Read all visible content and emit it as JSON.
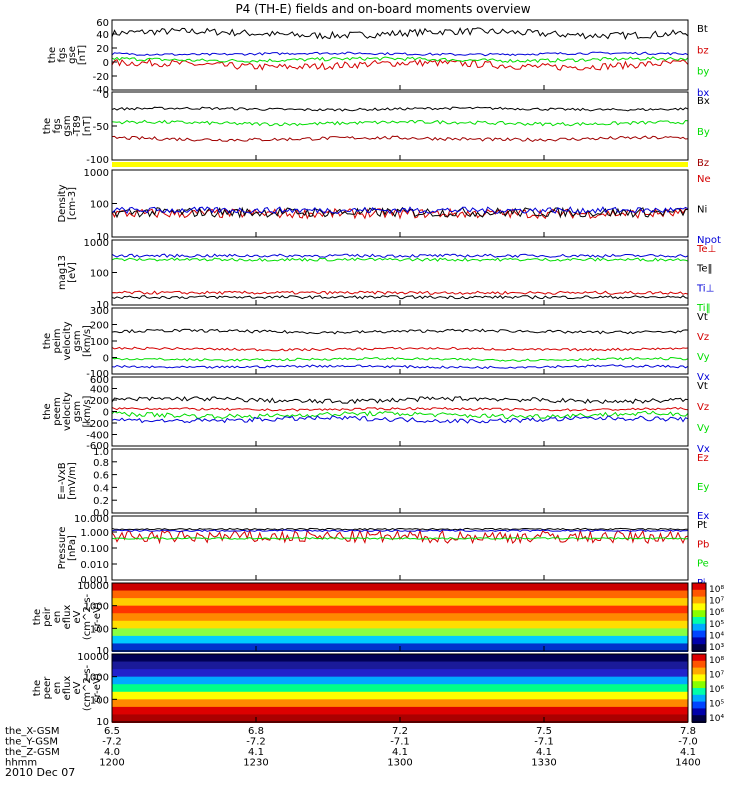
{
  "title": "P4 (TH-E) fields and on-board moments overview",
  "date_label": "2010 Dec 07",
  "colors": {
    "black": "#000000",
    "red": "#d40000",
    "green": "#00dd00",
    "blue": "#0000d8",
    "darkred": "#a00000",
    "yellow": "#ffff00"
  },
  "chart_data": [
    {
      "type": "line",
      "ylabel": [
        "the",
        "fgs",
        "gse",
        "[nT]"
      ],
      "yticks": [
        "60",
        "40",
        "20",
        "0",
        "-20",
        "-40"
      ],
      "ylim": [
        -55,
        65
      ],
      "series": [
        {
          "name": "Bt",
          "color": "#000000",
          "level": 42,
          "noise": 6
        },
        {
          "name": "bz",
          "color": "#d40000",
          "level": -12,
          "noise": 6
        },
        {
          "name": "by",
          "color": "#00dd00",
          "level": -3,
          "noise": 3
        },
        {
          "name": "bx",
          "color": "#0000d8",
          "level": 7,
          "noise": 2
        }
      ]
    },
    {
      "type": "line",
      "ylabel": [
        "the",
        "fgs",
        "gsm",
        "-T89",
        "[nT]"
      ],
      "yticks": [
        "0",
        "-50",
        "-100"
      ],
      "ylim": [
        -115,
        45
      ],
      "series": [
        {
          "name": "Bx",
          "color": "#000000",
          "level": 5,
          "noise": 3
        },
        {
          "name": "By",
          "color": "#00dd00",
          "level": -28,
          "noise": 4
        },
        {
          "name": "Bz",
          "color": "#a00000",
          "level": -65,
          "noise": 4
        }
      ]
    },
    {
      "type": "line",
      "ylabel": [
        "Density",
        "[cm-3]"
      ],
      "yticks": [
        "1000",
        "100",
        "10"
      ],
      "log": true,
      "ylim": [
        10,
        1300
      ],
      "series": [
        {
          "name": "Ne",
          "color": "#d40000",
          "level": 55,
          "noise": 0.15
        },
        {
          "name": "Ni",
          "color": "#000000",
          "level": 60,
          "noise": 0.15
        },
        {
          "name": "Npot",
          "color": "#0000d8",
          "level": 70,
          "noise": 0.1
        }
      ]
    },
    {
      "type": "line",
      "ylabel": [
        "mag13",
        "[eV]"
      ],
      "yticks": [
        "1000",
        "100",
        "10"
      ],
      "log": true,
      "ylim": [
        10,
        1300
      ],
      "series": [
        {
          "name": "Te⊥",
          "color": "#d40000",
          "level": 25,
          "noise": 0.05
        },
        {
          "name": "Te‖",
          "color": "#000000",
          "level": 18,
          "noise": 0.05
        },
        {
          "name": "Ti⊥",
          "color": "#0000d8",
          "level": 400,
          "noise": 0.05
        },
        {
          "name": "Ti‖",
          "color": "#00dd00",
          "level": 300,
          "noise": 0.05
        }
      ]
    },
    {
      "type": "line",
      "ylabel": [
        "the",
        "peim",
        "velocity",
        "gsm",
        "[km/s]"
      ],
      "yticks": [
        "300",
        "200",
        "100",
        "0",
        "-100"
      ],
      "ylim": [
        -140,
        310
      ],
      "series": [
        {
          "name": "Vt",
          "color": "#000000",
          "level": 150,
          "noise": 10
        },
        {
          "name": "Vz",
          "color": "#d40000",
          "level": 30,
          "noise": 8
        },
        {
          "name": "Vy",
          "color": "#00dd00",
          "level": -40,
          "noise": 8
        },
        {
          "name": "Vx",
          "color": "#0000d8",
          "level": -90,
          "noise": 8
        }
      ]
    },
    {
      "type": "line",
      "ylabel": [
        "the",
        "peem",
        "velocity",
        "gsm",
        "[km/s]"
      ],
      "yticks": [
        "600",
        "400",
        "200",
        "0",
        "-200",
        "-400",
        "-600"
      ],
      "ylim": [
        -600,
        600
      ],
      "series": [
        {
          "name": "Vt",
          "color": "#000000",
          "level": 200,
          "noise": 40
        },
        {
          "name": "Vz",
          "color": "#d40000",
          "level": 40,
          "noise": 20
        },
        {
          "name": "Vy",
          "color": "#00dd00",
          "level": -60,
          "noise": 40
        },
        {
          "name": "Vx",
          "color": "#0000d8",
          "level": -140,
          "noise": 40
        }
      ]
    },
    {
      "type": "line",
      "ylabel": [
        "E=-VxB",
        "[mV/m]"
      ],
      "yticks": [
        "1.0",
        "0.8",
        "0.6",
        "0.4",
        "0.2",
        "0.0"
      ],
      "ylim": [
        0,
        1
      ],
      "series": [
        {
          "name": "Ez",
          "color": "#d40000"
        },
        {
          "name": "Ey",
          "color": "#00dd00"
        },
        {
          "name": "Ex",
          "color": "#0000d8"
        }
      ]
    },
    {
      "type": "line",
      "ylabel": [
        "Pressure",
        "[nPa]"
      ],
      "yticks": [
        "10.000",
        "1.000",
        "0.100",
        "0.010",
        "0.001"
      ],
      "log": true,
      "ylim": [
        0.001,
        10
      ],
      "series": [
        {
          "name": "Pt",
          "color": "#000000",
          "level": 1.5,
          "noise": 0.05
        },
        {
          "name": "Pb",
          "color": "#d40000",
          "level": 0.5,
          "noise": 0.4
        },
        {
          "name": "Pe",
          "color": "#00dd00",
          "level": 0.4,
          "noise": 0.05
        },
        {
          "name": "Pi",
          "color": "#0000d8",
          "level": 1.2,
          "noise": 0.05
        }
      ]
    },
    {
      "type": "heatmap",
      "ylabel": [
        "the",
        "peir",
        "en",
        "eflux",
        "eV",
        "(cm^2-s-",
        "sr-eV)"
      ],
      "yticks": [
        "10000",
        "1000",
        "100",
        "10"
      ],
      "colorbar_ticks": [
        "10⁸",
        "10⁷",
        "10⁶",
        "10⁵",
        "10⁴",
        "10³"
      ]
    },
    {
      "type": "heatmap",
      "ylabel": [
        "the",
        "peer",
        "en",
        "eflux",
        "eV",
        "(cm^2-s-",
        "sr-eV)"
      ],
      "yticks": [
        "10000",
        "1000",
        "100",
        "10"
      ],
      "colorbar_ticks": [
        "10⁸",
        "10⁷",
        "10⁶",
        "10⁵",
        "10⁴"
      ]
    }
  ],
  "x_axis": {
    "row_labels": [
      "the_X-GSM",
      "the_Y-GSM",
      "the_Z-GSM",
      "hhmm"
    ],
    "columns": [
      {
        "x": "6.5",
        "y": "-7.2",
        "z": "4.0",
        "t": "1200"
      },
      {
        "x": "6.8",
        "y": "-7.2",
        "z": "4.1",
        "t": "1230"
      },
      {
        "x": "7.2",
        "y": "-7.1",
        "z": "4.1",
        "t": "1300"
      },
      {
        "x": "7.5",
        "y": "-7.1",
        "z": "4.1",
        "t": "1330"
      },
      {
        "x": "7.8",
        "y": "-7.0",
        "z": "4.1",
        "t": "1400"
      }
    ]
  }
}
